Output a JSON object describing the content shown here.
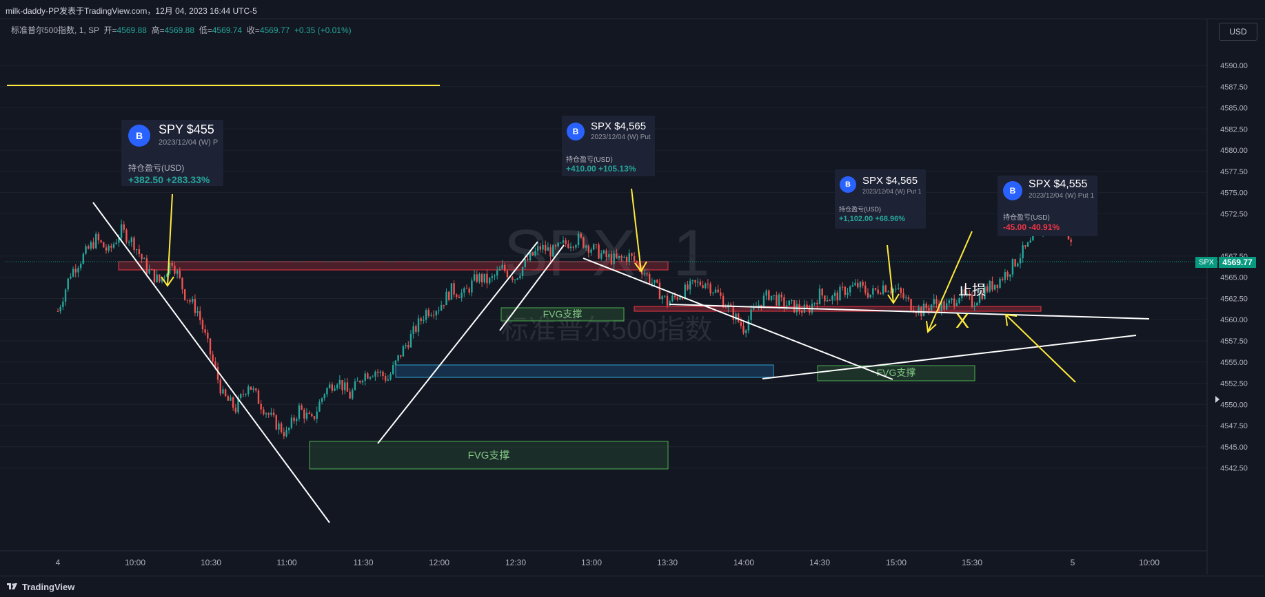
{
  "header": {
    "title": "milk-daddy-PP发表于TradingView.com，12月 04, 2023 16:44 UTC-5"
  },
  "legend": {
    "symbol": "标准普尔500指数, 1, SP",
    "open_label": "开=",
    "open": "4569.88",
    "high_label": "高=",
    "high": "4569.88",
    "low_label": "低=",
    "low": "4569.74",
    "close_label": "收=",
    "close": "4569.77",
    "change": "+0.35 (+0.01%)"
  },
  "currency_button": "USD",
  "footer": {
    "brand": "TradingView"
  },
  "watermark": {
    "symbol": "SPX, 1",
    "name": "标准普尔500指数"
  },
  "price_label": {
    "tag": "SPX",
    "value": "4569.77"
  },
  "colors": {
    "up": "#26a69a",
    "down": "#ef5350",
    "background": "#131722",
    "badge": "#2962ff",
    "loss": "#f23645"
  },
  "cards": [
    {
      "badge": "B",
      "title": "SPY $455",
      "subtitle": "2023/12/04 (W) P",
      "pl_label": "持仓盈亏(USD)",
      "pl": "+382.50 +283.33%",
      "pl_type": "gain"
    },
    {
      "badge": "B",
      "title": "SPX $4,565",
      "subtitle": "2023/12/04 (W) Put",
      "pl_label": "持仓盈亏(USD)",
      "pl": "+410.00 +105.13%",
      "pl_type": "gain"
    },
    {
      "badge": "B",
      "title": "SPX $4,565",
      "subtitle": "2023/12/04 (W) Put 1",
      "pl_label": "持仓盈亏(USD)",
      "pl": "+1,102.00 +68.96%",
      "pl_type": "gain"
    },
    {
      "badge": "B",
      "title": "SPX $4,555",
      "subtitle": "2023/12/04 (W) Put 1",
      "pl_label": "持仓盈亏(USD)",
      "pl": "-45.00 -40.91%",
      "pl_type": "loss"
    }
  ],
  "annotations": {
    "fvg": [
      "FVG支撑",
      "FVG支撑",
      "FVG支撑"
    ],
    "stop_loss": "止损",
    "stop_mark": "X"
  },
  "chart_data": {
    "type": "candlestick",
    "y_axis": {
      "ticks": [
        4590.0,
        4587.5,
        4585.0,
        4582.5,
        4580.0,
        4577.5,
        4575.0,
        4572.5,
        4567.5,
        4565.0,
        4562.5,
        4560.0,
        4557.5,
        4555.0,
        4552.5,
        4550.0,
        4547.5,
        4545.0,
        4542.5
      ],
      "tick_labels": [
        "4590.00",
        "4587.50",
        "4585.00",
        "4582.50",
        "4580.00",
        "4577.50",
        "4575.00",
        "4572.50",
        "4567.50",
        "4565.00",
        "4562.50",
        "4560.00",
        "4557.50",
        "4555.00",
        "4552.50",
        "4550.00",
        "4547.50",
        "4545.00",
        "4542.50"
      ],
      "ylim": [
        4541.0,
        4592.8
      ]
    },
    "x_axis": {
      "tick_labels": [
        "4",
        "10:00",
        "10:30",
        "11:00",
        "11:30",
        "12:00",
        "12:30",
        "13:00",
        "13:30",
        "14:00",
        "14:30",
        "15:00",
        "15:30",
        "5",
        "10:00"
      ]
    },
    "last_price": 4569.77,
    "price_path": [
      [
        "09:30",
        4561.0
      ],
      [
        "09:35",
        4565.5
      ],
      [
        "09:40",
        4567.5
      ],
      [
        "09:45",
        4569.5
      ],
      [
        "09:50",
        4568.0
      ],
      [
        "09:55",
        4570.5
      ],
      [
        "10:00",
        4569.0
      ],
      [
        "10:05",
        4566.0
      ],
      [
        "10:10",
        4564.5
      ],
      [
        "10:15",
        4567.0
      ],
      [
        "10:20",
        4563.0
      ],
      [
        "10:25",
        4561.0
      ],
      [
        "10:30",
        4556.0
      ],
      [
        "10:35",
        4551.0
      ],
      [
        "10:40",
        4549.5
      ],
      [
        "10:45",
        4552.5
      ],
      [
        "10:50",
        4550.0
      ],
      [
        "10:55",
        4548.0
      ],
      [
        "11:00",
        4546.5
      ],
      [
        "11:05",
        4549.5
      ],
      [
        "11:10",
        4548.0
      ],
      [
        "11:15",
        4551.5
      ],
      [
        "11:20",
        4553.0
      ],
      [
        "11:25",
        4551.0
      ],
      [
        "11:30",
        4553.5
      ],
      [
        "11:35",
        4554.0
      ],
      [
        "11:40",
        4553.0
      ],
      [
        "11:45",
        4556.0
      ],
      [
        "11:50",
        4558.5
      ],
      [
        "11:55",
        4561.0
      ],
      [
        "12:00",
        4561.5
      ],
      [
        "12:05",
        4563.5
      ],
      [
        "12:10",
        4563.0
      ],
      [
        "12:15",
        4565.0
      ],
      [
        "12:20",
        4564.5
      ],
      [
        "12:25",
        4566.0
      ],
      [
        "12:30",
        4565.0
      ],
      [
        "12:35",
        4567.0
      ],
      [
        "12:40",
        4568.5
      ],
      [
        "12:45",
        4568.0
      ],
      [
        "12:50",
        4569.0
      ],
      [
        "12:55",
        4569.5
      ],
      [
        "13:00",
        4568.5
      ],
      [
        "13:05",
        4567.5
      ],
      [
        "13:10",
        4567.0
      ],
      [
        "13:15",
        4567.5
      ],
      [
        "13:20",
        4566.0
      ],
      [
        "13:25",
        4564.0
      ],
      [
        "13:30",
        4562.0
      ],
      [
        "13:35",
        4563.0
      ],
      [
        "13:40",
        4564.0
      ],
      [
        "13:45",
        4564.5
      ],
      [
        "13:50",
        4563.0
      ],
      [
        "13:55",
        4561.0
      ],
      [
        "14:00",
        4559.0
      ],
      [
        "14:05",
        4561.5
      ],
      [
        "14:10",
        4563.0
      ],
      [
        "14:15",
        4562.0
      ],
      [
        "14:20",
        4561.5
      ],
      [
        "14:25",
        4561.0
      ],
      [
        "14:30",
        4563.0
      ],
      [
        "14:35",
        4562.5
      ],
      [
        "14:40",
        4563.5
      ],
      [
        "14:45",
        4564.0
      ],
      [
        "14:50",
        4563.0
      ],
      [
        "14:55",
        4564.0
      ],
      [
        "15:00",
        4563.5
      ],
      [
        "15:05",
        4562.0
      ],
      [
        "15:10",
        4561.0
      ],
      [
        "15:15",
        4562.0
      ],
      [
        "15:20",
        4561.5
      ],
      [
        "15:25",
        4563.0
      ],
      [
        "15:30",
        4562.0
      ],
      [
        "15:35",
        4563.5
      ],
      [
        "15:40",
        4564.5
      ],
      [
        "15:45",
        4566.0
      ],
      [
        "15:50",
        4568.0
      ],
      [
        "15:55",
        4569.5
      ],
      [
        "16:00",
        4572.0
      ],
      [
        "16:05",
        4570.5
      ],
      [
        "16:10",
        4569.8
      ]
    ]
  }
}
